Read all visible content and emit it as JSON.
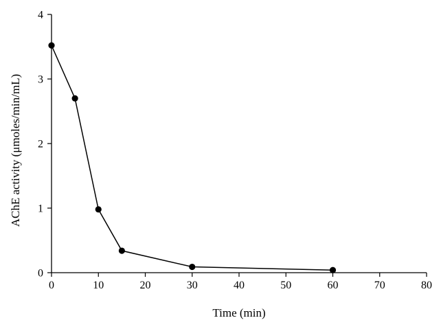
{
  "chart_data": {
    "type": "line",
    "title": "",
    "xlabel": "Time (min)",
    "ylabel": "AChE activity (μmoles/min/mL)",
    "xlim": [
      0,
      80
    ],
    "ylim": [
      0,
      4
    ],
    "xticks": [
      0,
      10,
      20,
      30,
      40,
      50,
      60,
      70,
      80
    ],
    "yticks": [
      0,
      1,
      2,
      3,
      4
    ],
    "grid": false,
    "legend": "none",
    "series": [
      {
        "color": "#000000",
        "marker": "circle",
        "x": [
          0,
          5,
          10,
          15,
          30,
          60
        ],
        "y": [
          3.52,
          2.7,
          0.98,
          0.34,
          0.09,
          0.04
        ]
      }
    ]
  }
}
